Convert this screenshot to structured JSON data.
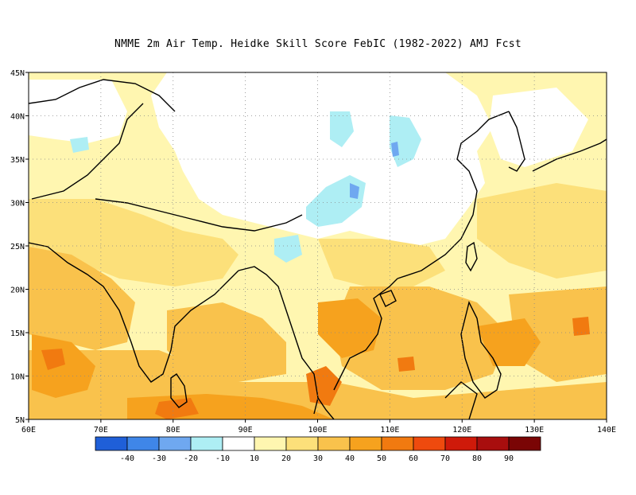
{
  "title": "NMME  2m Air Temp. Heidke Skill Score FebIC (1982-2022) AMJ Fcst",
  "map": {
    "lon_range": [
      60,
      140
    ],
    "lat_range": [
      5,
      45
    ],
    "lon_ticks": [
      "60E",
      "70E",
      "80E",
      "90E",
      "100E",
      "110E",
      "120E",
      "130E",
      "140E"
    ],
    "lat_ticks": [
      "5N",
      "10N",
      "15N",
      "20N",
      "25N",
      "30N",
      "35N",
      "40N",
      "45N"
    ],
    "grid": "dotted"
  },
  "colorbar": {
    "labels": [
      "-40",
      "-30",
      "-20",
      "-10",
      "10",
      "20",
      "30",
      "40",
      "50",
      "60",
      "70",
      "80",
      "90"
    ],
    "colors": [
      "#1f5fd8",
      "#3f86e8",
      "#6fa8f0",
      "#aeeef4",
      "#ffffff",
      "#fff6b0",
      "#fce07a",
      "#f9c24c",
      "#f6a21e",
      "#f17a10",
      "#ee4a0e",
      "#cf1a0a",
      "#a80e0e",
      "#7a0505"
    ]
  }
}
